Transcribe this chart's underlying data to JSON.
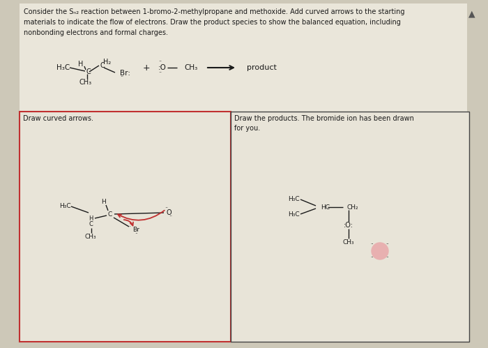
{
  "bg_color": "#cdc8b8",
  "panel_bg": "#e8e4d8",
  "box_bg": "#e8e4d8",
  "text_color": "#1a1a1a",
  "red_color": "#c03030",
  "border_red": "#c03030",
  "border_dark": "#444444",
  "title": "Consider the Sₙ₂ reaction between 1-bromo-2-methylpropane and methoxide. Add curved arrows to the starting\nmaterials to indicate the flow of electrons. Draw the product species to show the balanced equation, including\nnonbonding electrons and formal charges.",
  "box1_label": "Draw curved arrows.",
  "box2_label": "Draw the products. The bromide ion has been drawn\nfor you.",
  "figw": 7.0,
  "figh": 4.99,
  "dpi": 100
}
